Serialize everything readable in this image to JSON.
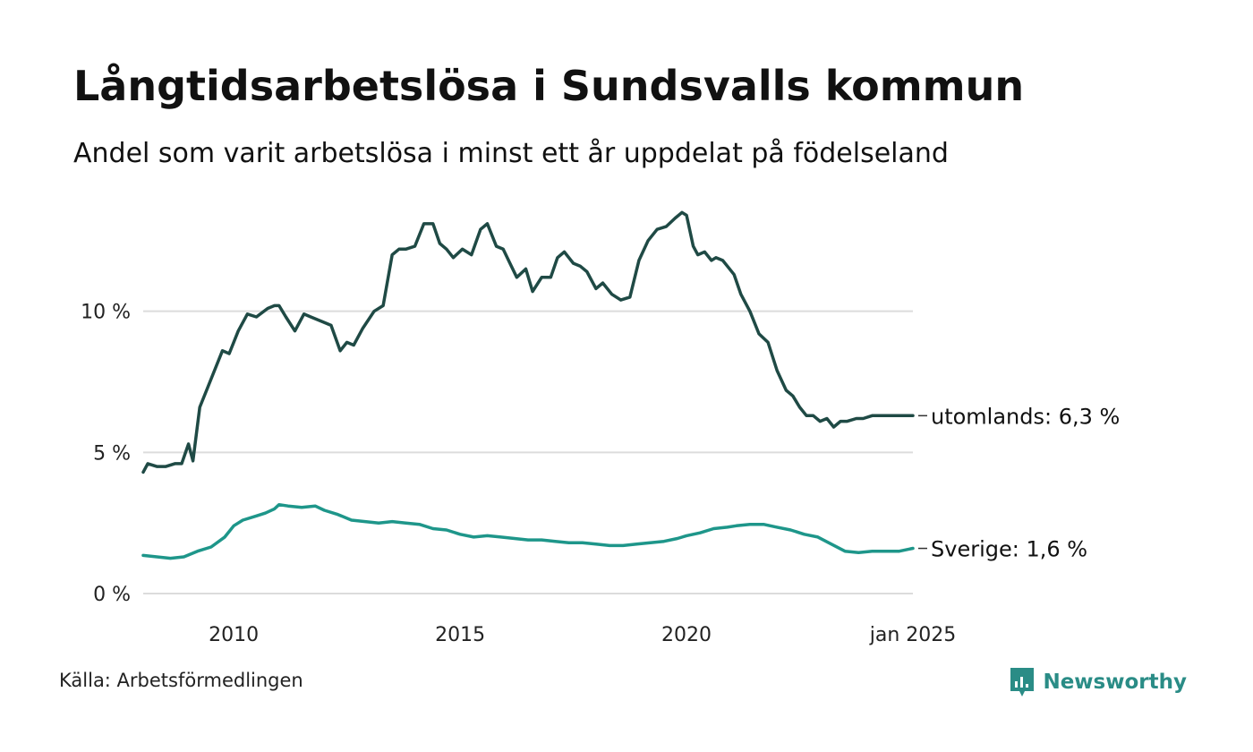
{
  "title": "Långtidsarbetslösa i Sundsvalls kommun",
  "subtitle": "Andel som varit arbetslösa i minst ett år uppdelat på födelseland",
  "source": "Källa: Arbetsförmedlingen",
  "brand": {
    "name": "Newsworthy",
    "color": "#2a8c86",
    "icon": "newsworthy-logo-icon"
  },
  "colors": {
    "utomlands": "#1f4a45",
    "sverige": "#1e968a",
    "grid": "#dcdcdc"
  },
  "chart_data": {
    "type": "line",
    "title": "Långtidsarbetslösa i Sundsvalls kommun",
    "subtitle": "Andel som varit arbetslösa i minst ett år uppdelat på födelseland",
    "x_range": [
      2008.0,
      2025.0
    ],
    "ylim": [
      0,
      14
    ],
    "grid": "horizontal",
    "x_ticks": [
      {
        "value": 2010,
        "label": "2010"
      },
      {
        "value": 2015,
        "label": "2015"
      },
      {
        "value": 2020,
        "label": "2020"
      },
      {
        "value": 2025,
        "label": "jan 2025"
      }
    ],
    "y_ticks": [
      {
        "value": 0,
        "label": "0 %"
      },
      {
        "value": 5,
        "label": "5 %"
      },
      {
        "value": 10,
        "label": "10 %"
      }
    ],
    "series": [
      {
        "key": "utomlands",
        "end_label": "utomlands: 6,3 %",
        "x": [
          2008.0,
          2008.1,
          2008.3,
          2008.5,
          2008.7,
          2008.85,
          2009.0,
          2009.1,
          2009.25,
          2009.4,
          2009.55,
          2009.75,
          2009.9,
          2010.1,
          2010.3,
          2010.5,
          2010.75,
          2010.9,
          2011.0,
          2011.15,
          2011.35,
          2011.55,
          2011.7,
          2011.85,
          2012.0,
          2012.15,
          2012.35,
          2012.5,
          2012.65,
          2012.85,
          2013.1,
          2013.3,
          2013.5,
          2013.65,
          2013.8,
          2014.0,
          2014.2,
          2014.4,
          2014.55,
          2014.7,
          2014.85,
          2015.05,
          2015.25,
          2015.45,
          2015.6,
          2015.8,
          2015.95,
          2016.1,
          2016.25,
          2016.45,
          2016.6,
          2016.8,
          2017.0,
          2017.15,
          2017.3,
          2017.5,
          2017.65,
          2017.8,
          2018.0,
          2018.15,
          2018.35,
          2018.55,
          2018.75,
          2018.95,
          2019.15,
          2019.35,
          2019.55,
          2019.75,
          2019.9,
          2020.0,
          2020.15,
          2020.25,
          2020.4,
          2020.55,
          2020.65,
          2020.8,
          2020.9,
          2021.05,
          2021.2,
          2021.4,
          2021.6,
          2021.8,
          2022.0,
          2022.2,
          2022.35,
          2022.5,
          2022.65,
          2022.8,
          2022.95,
          2023.1,
          2023.25,
          2023.4,
          2023.55,
          2023.75,
          2023.9,
          2024.1,
          2024.25,
          2024.4,
          2024.55,
          2024.7,
          2024.85,
          2025.0
        ],
        "y": [
          4.3,
          4.6,
          4.5,
          4.5,
          4.6,
          4.6,
          5.3,
          4.7,
          6.6,
          7.2,
          7.8,
          8.6,
          8.5,
          9.3,
          9.9,
          9.8,
          10.1,
          10.2,
          10.2,
          9.8,
          9.3,
          9.9,
          9.8,
          9.7,
          9.6,
          9.5,
          8.6,
          8.9,
          8.8,
          9.4,
          10.0,
          10.2,
          12.0,
          12.2,
          12.2,
          12.3,
          13.1,
          13.1,
          12.4,
          12.2,
          11.9,
          12.2,
          12.0,
          12.9,
          13.1,
          12.3,
          12.2,
          11.7,
          11.2,
          11.5,
          10.7,
          11.2,
          11.2,
          11.9,
          12.1,
          11.7,
          11.6,
          11.4,
          10.8,
          11.0,
          10.6,
          10.4,
          10.5,
          11.8,
          12.5,
          12.9,
          13.0,
          13.3,
          13.5,
          13.4,
          12.3,
          12.0,
          12.1,
          11.8,
          11.9,
          11.8,
          11.6,
          11.3,
          10.6,
          10.0,
          9.2,
          8.9,
          7.9,
          7.2,
          7.0,
          6.6,
          6.3,
          6.3,
          6.1,
          6.2,
          5.9,
          6.1,
          6.1,
          6.2,
          6.2,
          6.3,
          6.3,
          6.3,
          6.3,
          6.3,
          6.3,
          6.3
        ],
        "values_note": ""
      },
      {
        "key": "sverige",
        "end_label": "Sverige: 1,6 %",
        "x": [
          2008.0,
          2008.3,
          2008.6,
          2008.9,
          2009.2,
          2009.5,
          2009.8,
          2010.0,
          2010.2,
          2010.5,
          2010.7,
          2010.9,
          2011.0,
          2011.2,
          2011.5,
          2011.8,
          2012.0,
          2012.3,
          2012.6,
          2012.9,
          2013.2,
          2013.5,
          2013.8,
          2014.1,
          2014.4,
          2014.7,
          2015.0,
          2015.3,
          2015.6,
          2015.9,
          2016.2,
          2016.5,
          2016.8,
          2017.1,
          2017.4,
          2017.7,
          2018.0,
          2018.3,
          2018.6,
          2018.9,
          2019.2,
          2019.5,
          2019.8,
          2020.0,
          2020.3,
          2020.6,
          2020.9,
          2021.1,
          2021.4,
          2021.7,
          2022.0,
          2022.3,
          2022.6,
          2022.9,
          2023.2,
          2023.5,
          2023.8,
          2024.1,
          2024.4,
          2024.7,
          2025.0
        ],
        "y": [
          1.35,
          1.3,
          1.25,
          1.3,
          1.5,
          1.65,
          2.0,
          2.4,
          2.6,
          2.75,
          2.85,
          3.0,
          3.15,
          3.1,
          3.05,
          3.1,
          2.95,
          2.8,
          2.6,
          2.55,
          2.5,
          2.55,
          2.5,
          2.45,
          2.3,
          2.25,
          2.1,
          2.0,
          2.05,
          2.0,
          1.95,
          1.9,
          1.9,
          1.85,
          1.8,
          1.8,
          1.75,
          1.7,
          1.7,
          1.75,
          1.8,
          1.85,
          1.95,
          2.05,
          2.15,
          2.3,
          2.35,
          2.4,
          2.45,
          2.45,
          2.35,
          2.25,
          2.1,
          2.0,
          1.75,
          1.5,
          1.45,
          1.5,
          1.5,
          1.5,
          1.6
        ],
        "values_note": ""
      }
    ]
  }
}
